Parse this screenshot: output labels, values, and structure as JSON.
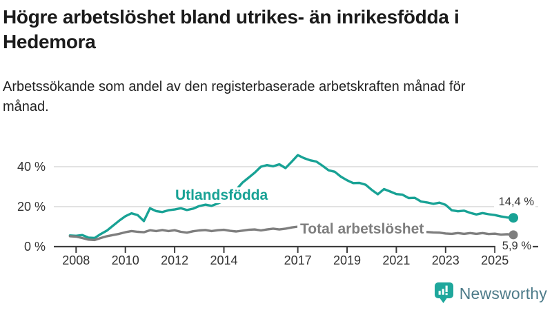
{
  "header": {
    "title": "Högre arbetslöshet bland utrikes- än inrikesfödda i Hedemora",
    "subtitle": "Arbetssökande som andel av den registerbaserade arbetskraften månad för månad."
  },
  "colors": {
    "foreign_series": "#18a295",
    "total_series": "#7e7e7e",
    "grid": "#d9d9d9",
    "axis": "#3d3d3d",
    "tick_text": "#333333",
    "logo_bubble": "#1fa79c",
    "logo_text": "#4d7b89"
  },
  "chart_data": {
    "type": "line",
    "x_start": 2007.75,
    "x_step": 0.25,
    "x_ticks": [
      2008,
      2010,
      2012,
      2014,
      2017,
      2019,
      2021,
      2023,
      2025
    ],
    "y_ticks": [
      0,
      20,
      40
    ],
    "y_tick_labels": [
      "0 %",
      "20 %",
      "40 %"
    ],
    "ylim": [
      0,
      48
    ],
    "grid": true,
    "legend_position": "inline-on-line",
    "series": [
      {
        "name": "Utlandsfödda",
        "color": "#18a295",
        "end_label": "14,4 %",
        "end_value": 14.4,
        "values": [
          5.6,
          5.4,
          5.8,
          4.5,
          4.3,
          6.3,
          8.0,
          10.5,
          13.0,
          15.2,
          16.7,
          15.8,
          12.8,
          19.2,
          17.8,
          17.3,
          18.2,
          18.6,
          19.2,
          18.3,
          19.0,
          20.3,
          21.0,
          20.4,
          21.6,
          23.0,
          25.5,
          28.5,
          32.0,
          34.5,
          37.0,
          40.0,
          40.8,
          40.2,
          41.2,
          39.3,
          42.5,
          45.8,
          44.3,
          43.2,
          42.6,
          40.5,
          38.2,
          37.5,
          35.0,
          33.2,
          31.8,
          31.9,
          31.0,
          28.4,
          26.2,
          28.8,
          27.6,
          26.3,
          26.0,
          24.3,
          24.4,
          22.6,
          22.1,
          21.4,
          22.0,
          20.9,
          18.2,
          17.7,
          18.0,
          16.9,
          16.1,
          16.8,
          16.2,
          15.8,
          15.1,
          14.6,
          14.4
        ]
      },
      {
        "name": "Total arbetslöshet",
        "color": "#7e7e7e",
        "end_label": "5,9 %",
        "end_value": 5.9,
        "values": [
          5.2,
          5.0,
          4.3,
          3.5,
          3.3,
          4.3,
          5.2,
          5.8,
          6.4,
          7.2,
          7.8,
          7.4,
          7.2,
          8.2,
          7.8,
          8.3,
          7.8,
          8.2,
          7.4,
          7.0,
          7.7,
          8.1,
          8.3,
          7.8,
          8.2,
          8.4,
          7.9,
          7.6,
          8.0,
          8.4,
          8.6,
          8.1,
          8.6,
          9.0,
          8.6,
          9.0,
          9.6,
          10.0,
          9.7,
          9.5,
          9.3,
          9.5,
          9.2,
          9.0,
          8.8,
          8.6,
          8.5,
          8.7,
          8.9,
          9.3,
          9.6,
          9.4,
          9.0,
          8.7,
          8.4,
          8.0,
          7.7,
          7.5,
          7.3,
          7.1,
          7.0,
          6.6,
          6.4,
          6.8,
          6.4,
          6.8,
          6.4,
          6.8,
          6.3,
          6.5,
          6.0,
          6.2,
          5.9
        ]
      }
    ]
  },
  "logo": {
    "name": "Newsworthy",
    "icon": "bar-chart-speech-bubble-icon"
  }
}
